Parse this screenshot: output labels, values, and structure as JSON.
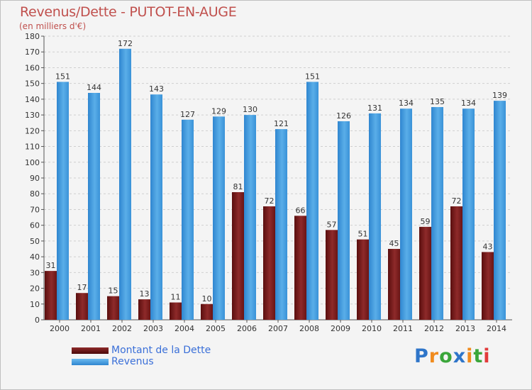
{
  "chart_data": {
    "type": "bar",
    "title": "Revenus/Dette - PUTOT-EN-AUGE",
    "subtitle": "(en milliers d'€)",
    "categories": [
      "2000",
      "2001",
      "2002",
      "2003",
      "2004",
      "2005",
      "2006",
      "2007",
      "2008",
      "2009",
      "2010",
      "2011",
      "2012",
      "2013",
      "2014"
    ],
    "series": [
      {
        "name": "Montant de la Dette",
        "color": "#7a1c1c",
        "values": [
          31,
          17,
          15,
          13,
          11,
          10,
          81,
          72,
          66,
          57,
          51,
          45,
          59,
          72,
          43
        ]
      },
      {
        "name": "Revenus",
        "color": "#4a9de0",
        "values": [
          151,
          144,
          172,
          143,
          127,
          129,
          130,
          121,
          151,
          126,
          131,
          134,
          135,
          134,
          139
        ]
      }
    ],
    "ylim": [
      0,
      180
    ],
    "yticks": [
      0,
      10,
      20,
      30,
      40,
      50,
      60,
      70,
      80,
      90,
      100,
      110,
      120,
      130,
      140,
      150,
      160,
      170,
      180
    ],
    "grid": true,
    "legend_position": "bottom-left"
  },
  "logo": {
    "text": "Proxiti",
    "letters": [
      "P",
      "r",
      "o",
      "x",
      "i",
      "t",
      "i"
    ],
    "colors": [
      "#2e75c9",
      "#f08b1d",
      "#3aa63a",
      "#2e75c9",
      "#f08b1d",
      "#3aa63a",
      "#e23b3b"
    ]
  }
}
